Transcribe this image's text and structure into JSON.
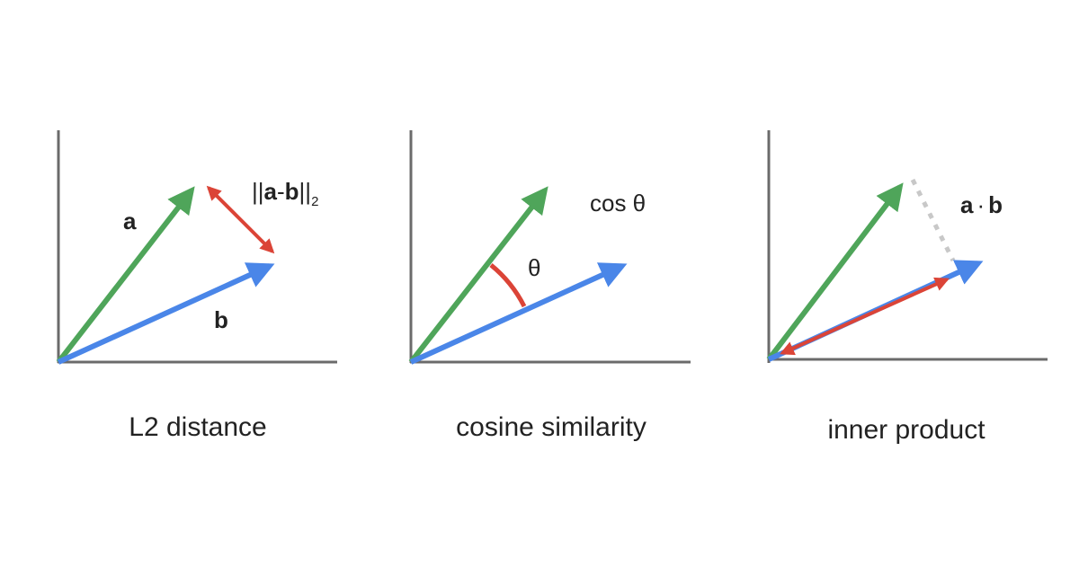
{
  "panels": [
    {
      "caption": "L2 distance",
      "vector_a": "a",
      "vector_b": "b",
      "distance_label": {
        "parts": [
          "||",
          "a",
          "-",
          "b",
          "||"
        ],
        "subscript": "2"
      }
    },
    {
      "caption": "cosine similarity",
      "angle_label": "θ",
      "measure_label": "cos θ"
    },
    {
      "caption": "inner product",
      "measure_label": {
        "parts": [
          "a",
          "·",
          "b"
        ]
      }
    }
  ]
}
